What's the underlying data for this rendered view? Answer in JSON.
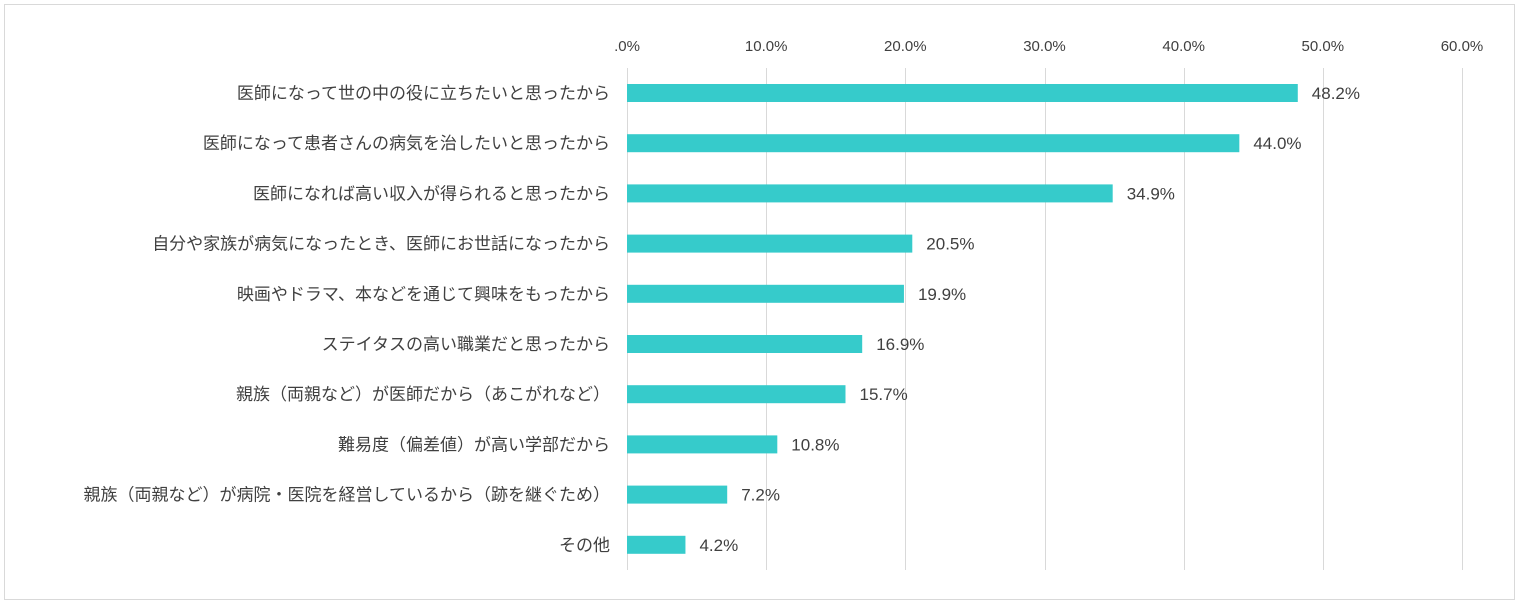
{
  "chart_data": {
    "type": "bar",
    "orientation": "horizontal",
    "title": "",
    "xlabel": "",
    "ylabel": "",
    "xlim": [
      0,
      60
    ],
    "grid": true,
    "x_axis_position": "top",
    "tick_labels": [
      ".0%",
      "10.0%",
      "20.0%",
      "30.0%",
      "40.0%",
      "50.0%",
      "60.0%"
    ],
    "ticks": [
      0,
      10,
      20,
      30,
      40,
      50,
      60
    ],
    "categories": [
      "医師になって世の中の役に立ちたいと思ったから",
      "医師になって患者さんの病気を治したいと思ったから",
      "医師になれば高い収入が得られると思ったから",
      "自分や家族が病気になったとき、医師にお世話になったから",
      "映画やドラマ、本などを通じて興味をもったから",
      "ステイタスの高い職業だと思ったから",
      "親族（両親など）が医師だから（あこがれなど）",
      "難易度（偏差値）が高い学部だから",
      "親族（両親など）が病院・医院を経営しているから（跡を継ぐため）",
      "その他"
    ],
    "values": [
      48.2,
      44.0,
      34.9,
      20.5,
      19.9,
      16.9,
      15.7,
      10.8,
      7.2,
      4.2
    ],
    "value_labels": [
      "48.2%",
      "44.0%",
      "34.9%",
      "20.5%",
      "19.9%",
      "16.9%",
      "15.7%",
      "10.8%",
      "7.2%",
      "4.2%"
    ],
    "bar_color": "#36CBCB",
    "grid_color": "#D9D9D9",
    "text_color": "#404040"
  }
}
